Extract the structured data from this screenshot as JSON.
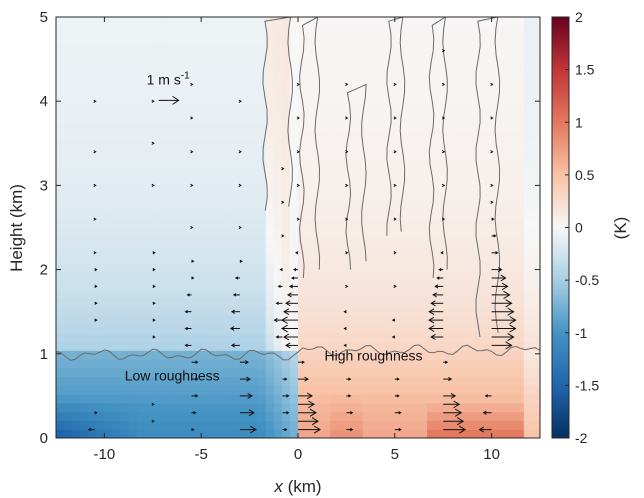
{
  "chart_data": {
    "type": "heatmap",
    "title": "",
    "xlabel_var": "x",
    "xlabel_unit": " (km)",
    "ylabel": "Height (km)",
    "colorbar_label": "(K)",
    "xlim": [
      -12.5,
      12.5
    ],
    "ylim": [
      0,
      5
    ],
    "xticks": [
      -10,
      -5,
      0,
      5,
      10
    ],
    "yticks": [
      0,
      1,
      2,
      3,
      4,
      5
    ],
    "colorbar": {
      "range": [
        -2,
        2
      ],
      "ticks": [
        -2,
        -1.5,
        -1,
        -0.5,
        0,
        0.5,
        1,
        1.5,
        2
      ],
      "colormap": "diverging blue-white-red",
      "low_color": "#1f5fa0",
      "mid_color": "#f7f7f7",
      "high_color": "#b5172b"
    },
    "annotations": [
      {
        "text": "Low roughness",
        "x": -6.5,
        "y": 0.68
      },
      {
        "text": "High roughness",
        "x": 3.9,
        "y": 0.92
      }
    ],
    "reference_vector": {
      "label_main": "1 m s",
      "label_exp": "-1",
      "x": -7.2,
      "y": 4.2
    },
    "boundary_layer_height_km": 1.02,
    "field_approx": [
      {
        "x_range": [
          -12.5,
          0
        ],
        "y_range": [
          0,
          1
        ],
        "value": -0.9
      },
      {
        "x_range": [
          -12.5,
          -8
        ],
        "y_range": [
          0,
          0.4
        ],
        "value": -1.4
      },
      {
        "x_range": [
          -12.5,
          0
        ],
        "y_range": [
          1,
          2.5
        ],
        "value": -0.35
      },
      {
        "x_range": [
          0,
          12.5
        ],
        "y_range": [
          0,
          1
        ],
        "value": 0.6
      },
      {
        "x_range": [
          7,
          11
        ],
        "y_range": [
          0,
          0.3
        ],
        "value": 0.9
      },
      {
        "x_range": [
          0,
          12.5
        ],
        "y_range": [
          1,
          3
        ],
        "value": 0.3
      }
    ],
    "wind_profiles": [
      {
        "x": -10.5,
        "levels": [
          [
            0.1,
            -0.3
          ],
          [
            0.3,
            0.1
          ],
          [
            1.4,
            0.1
          ],
          [
            1.6,
            0.1
          ],
          [
            1.8,
            0.1
          ],
          [
            2.0,
            0.1
          ],
          [
            2.2,
            0.05
          ],
          [
            2.6,
            0.05
          ],
          [
            3.0,
            0.05
          ],
          [
            3.4,
            0.05
          ],
          [
            4.0,
            0.05
          ]
        ]
      },
      {
        "x": -7.5,
        "levels": [
          [
            0.2,
            0.05
          ],
          [
            0.4,
            0.05
          ],
          [
            1.2,
            0.1
          ],
          [
            1.4,
            0.1
          ],
          [
            1.6,
            0.1
          ],
          [
            1.8,
            0.1
          ],
          [
            2.0,
            0.1
          ],
          [
            2.2,
            0.1
          ],
          [
            3.0,
            0.05
          ],
          [
            3.5,
            0.05
          ],
          [
            4.0,
            0.05
          ]
        ]
      },
      {
        "x": -5.5,
        "levels": [
          [
            0.1,
            0.1
          ],
          [
            0.3,
            0.2
          ],
          [
            0.5,
            0.3
          ],
          [
            0.7,
            0.3
          ],
          [
            0.9,
            0.3
          ],
          [
            1.1,
            -0.3
          ],
          [
            1.3,
            -0.3
          ],
          [
            1.5,
            -0.3
          ],
          [
            1.7,
            -0.2
          ],
          [
            1.9,
            0.1
          ],
          [
            2.1,
            0.1
          ],
          [
            2.5,
            0.05
          ],
          [
            3.0,
            0.05
          ],
          [
            3.4,
            0.05
          ],
          [
            3.8,
            0.05
          ],
          [
            4.2,
            0.05
          ]
        ]
      },
      {
        "x": -3.0,
        "levels": [
          [
            0.1,
            0.8
          ],
          [
            0.3,
            0.7
          ],
          [
            0.5,
            0.6
          ],
          [
            0.7,
            0.5
          ],
          [
            0.9,
            0.4
          ],
          [
            1.1,
            -0.4
          ],
          [
            1.3,
            -0.45
          ],
          [
            1.5,
            -0.4
          ],
          [
            1.7,
            -0.3
          ],
          [
            1.9,
            -0.2
          ],
          [
            2.1,
            0.1
          ],
          [
            2.5,
            0.05
          ],
          [
            3.0,
            0.05
          ],
          [
            3.4,
            0.05
          ],
          [
            4.0,
            0.05
          ]
        ]
      },
      {
        "x": -0.8,
        "levels": [
          [
            0.1,
            0.2
          ],
          [
            0.3,
            0.3
          ],
          [
            0.5,
            0.3
          ],
          [
            0.7,
            0.2
          ],
          [
            1.2,
            -0.3
          ],
          [
            1.4,
            -0.4
          ],
          [
            1.6,
            -0.3
          ],
          [
            1.8,
            -0.2
          ],
          [
            2.0,
            -0.1
          ],
          [
            2.4,
            0.05
          ],
          [
            2.8,
            0.05
          ],
          [
            3.2,
            0.05
          ]
        ]
      },
      {
        "x": 0.0,
        "levels": [
          [
            0.1,
            1.1
          ],
          [
            0.2,
            1.0
          ],
          [
            0.3,
            0.9
          ],
          [
            0.4,
            0.8
          ],
          [
            0.5,
            0.7
          ],
          [
            0.7,
            0.5
          ],
          [
            0.9,
            0.3
          ],
          [
            1.1,
            -0.6
          ],
          [
            1.2,
            -0.7
          ],
          [
            1.3,
            -0.8
          ],
          [
            1.4,
            -0.8
          ],
          [
            1.5,
            -0.7
          ],
          [
            1.6,
            -0.6
          ],
          [
            1.7,
            -0.5
          ],
          [
            1.8,
            -0.4
          ],
          [
            1.9,
            -0.3
          ],
          [
            2.0,
            -0.2
          ],
          [
            2.2,
            -0.1
          ],
          [
            2.6,
            0.05
          ],
          [
            3.0,
            0.05
          ],
          [
            3.4,
            0.05
          ],
          [
            3.8,
            0.05
          ],
          [
            4.2,
            0.05
          ]
        ]
      },
      {
        "x": 2.5,
        "levels": [
          [
            0.1,
            0.3
          ],
          [
            0.3,
            0.3
          ],
          [
            0.5,
            0.2
          ],
          [
            0.7,
            0.2
          ],
          [
            1.1,
            -0.1
          ],
          [
            1.3,
            -0.1
          ],
          [
            1.5,
            -0.1
          ],
          [
            1.8,
            0.05
          ],
          [
            2.2,
            0.05
          ],
          [
            2.6,
            0.05
          ],
          [
            3.0,
            0.05
          ],
          [
            3.4,
            0.05
          ],
          [
            3.8,
            0.05
          ],
          [
            4.2,
            0.05
          ]
        ]
      },
      {
        "x": 5.0,
        "levels": [
          [
            0.1,
            0.3
          ],
          [
            0.3,
            0.3
          ],
          [
            0.5,
            0.2
          ],
          [
            0.7,
            0.2
          ],
          [
            1.2,
            -0.1
          ],
          [
            1.4,
            -0.1
          ],
          [
            1.8,
            0.05
          ],
          [
            2.2,
            0.05
          ],
          [
            2.6,
            0.05
          ],
          [
            3.0,
            0.05
          ],
          [
            3.4,
            0.05
          ],
          [
            3.8,
            0.05
          ],
          [
            4.2,
            0.05
          ]
        ]
      },
      {
        "x": 7.5,
        "levels": [
          [
            0.1,
            1.1
          ],
          [
            0.2,
            1.0
          ],
          [
            0.3,
            0.9
          ],
          [
            0.4,
            0.8
          ],
          [
            0.5,
            0.6
          ],
          [
            0.7,
            0.4
          ],
          [
            0.9,
            0.2
          ],
          [
            1.2,
            -0.6
          ],
          [
            1.3,
            -0.7
          ],
          [
            1.4,
            -0.7
          ],
          [
            1.5,
            -0.7
          ],
          [
            1.6,
            -0.6
          ],
          [
            1.7,
            -0.5
          ],
          [
            1.8,
            -0.4
          ],
          [
            1.9,
            -0.3
          ],
          [
            2.0,
            -0.2
          ],
          [
            2.2,
            -0.1
          ],
          [
            2.6,
            0.05
          ],
          [
            3.0,
            0.05
          ],
          [
            3.4,
            0.05
          ],
          [
            3.8,
            0.05
          ],
          [
            4.2,
            0.05
          ],
          [
            4.6,
            0.05
          ]
        ]
      },
      {
        "x": 10.0,
        "levels": [
          [
            0.1,
            -0.6
          ],
          [
            0.3,
            -0.4
          ],
          [
            0.5,
            -0.3
          ],
          [
            1.1,
            1.0
          ],
          [
            1.2,
            1.1
          ],
          [
            1.3,
            1.2
          ],
          [
            1.4,
            1.2
          ],
          [
            1.5,
            1.1
          ],
          [
            1.6,
            1.0
          ],
          [
            1.7,
            0.9
          ],
          [
            1.8,
            0.8
          ],
          [
            1.9,
            0.7
          ],
          [
            2.0,
            0.5
          ],
          [
            2.2,
            0.3
          ],
          [
            2.4,
            0.2
          ],
          [
            2.6,
            0.1
          ],
          [
            2.8,
            0.05
          ],
          [
            3.0,
            0.05
          ],
          [
            3.4,
            0.05
          ],
          [
            3.8,
            0.05
          ],
          [
            4.2,
            0.05
          ]
        ]
      }
    ]
  }
}
